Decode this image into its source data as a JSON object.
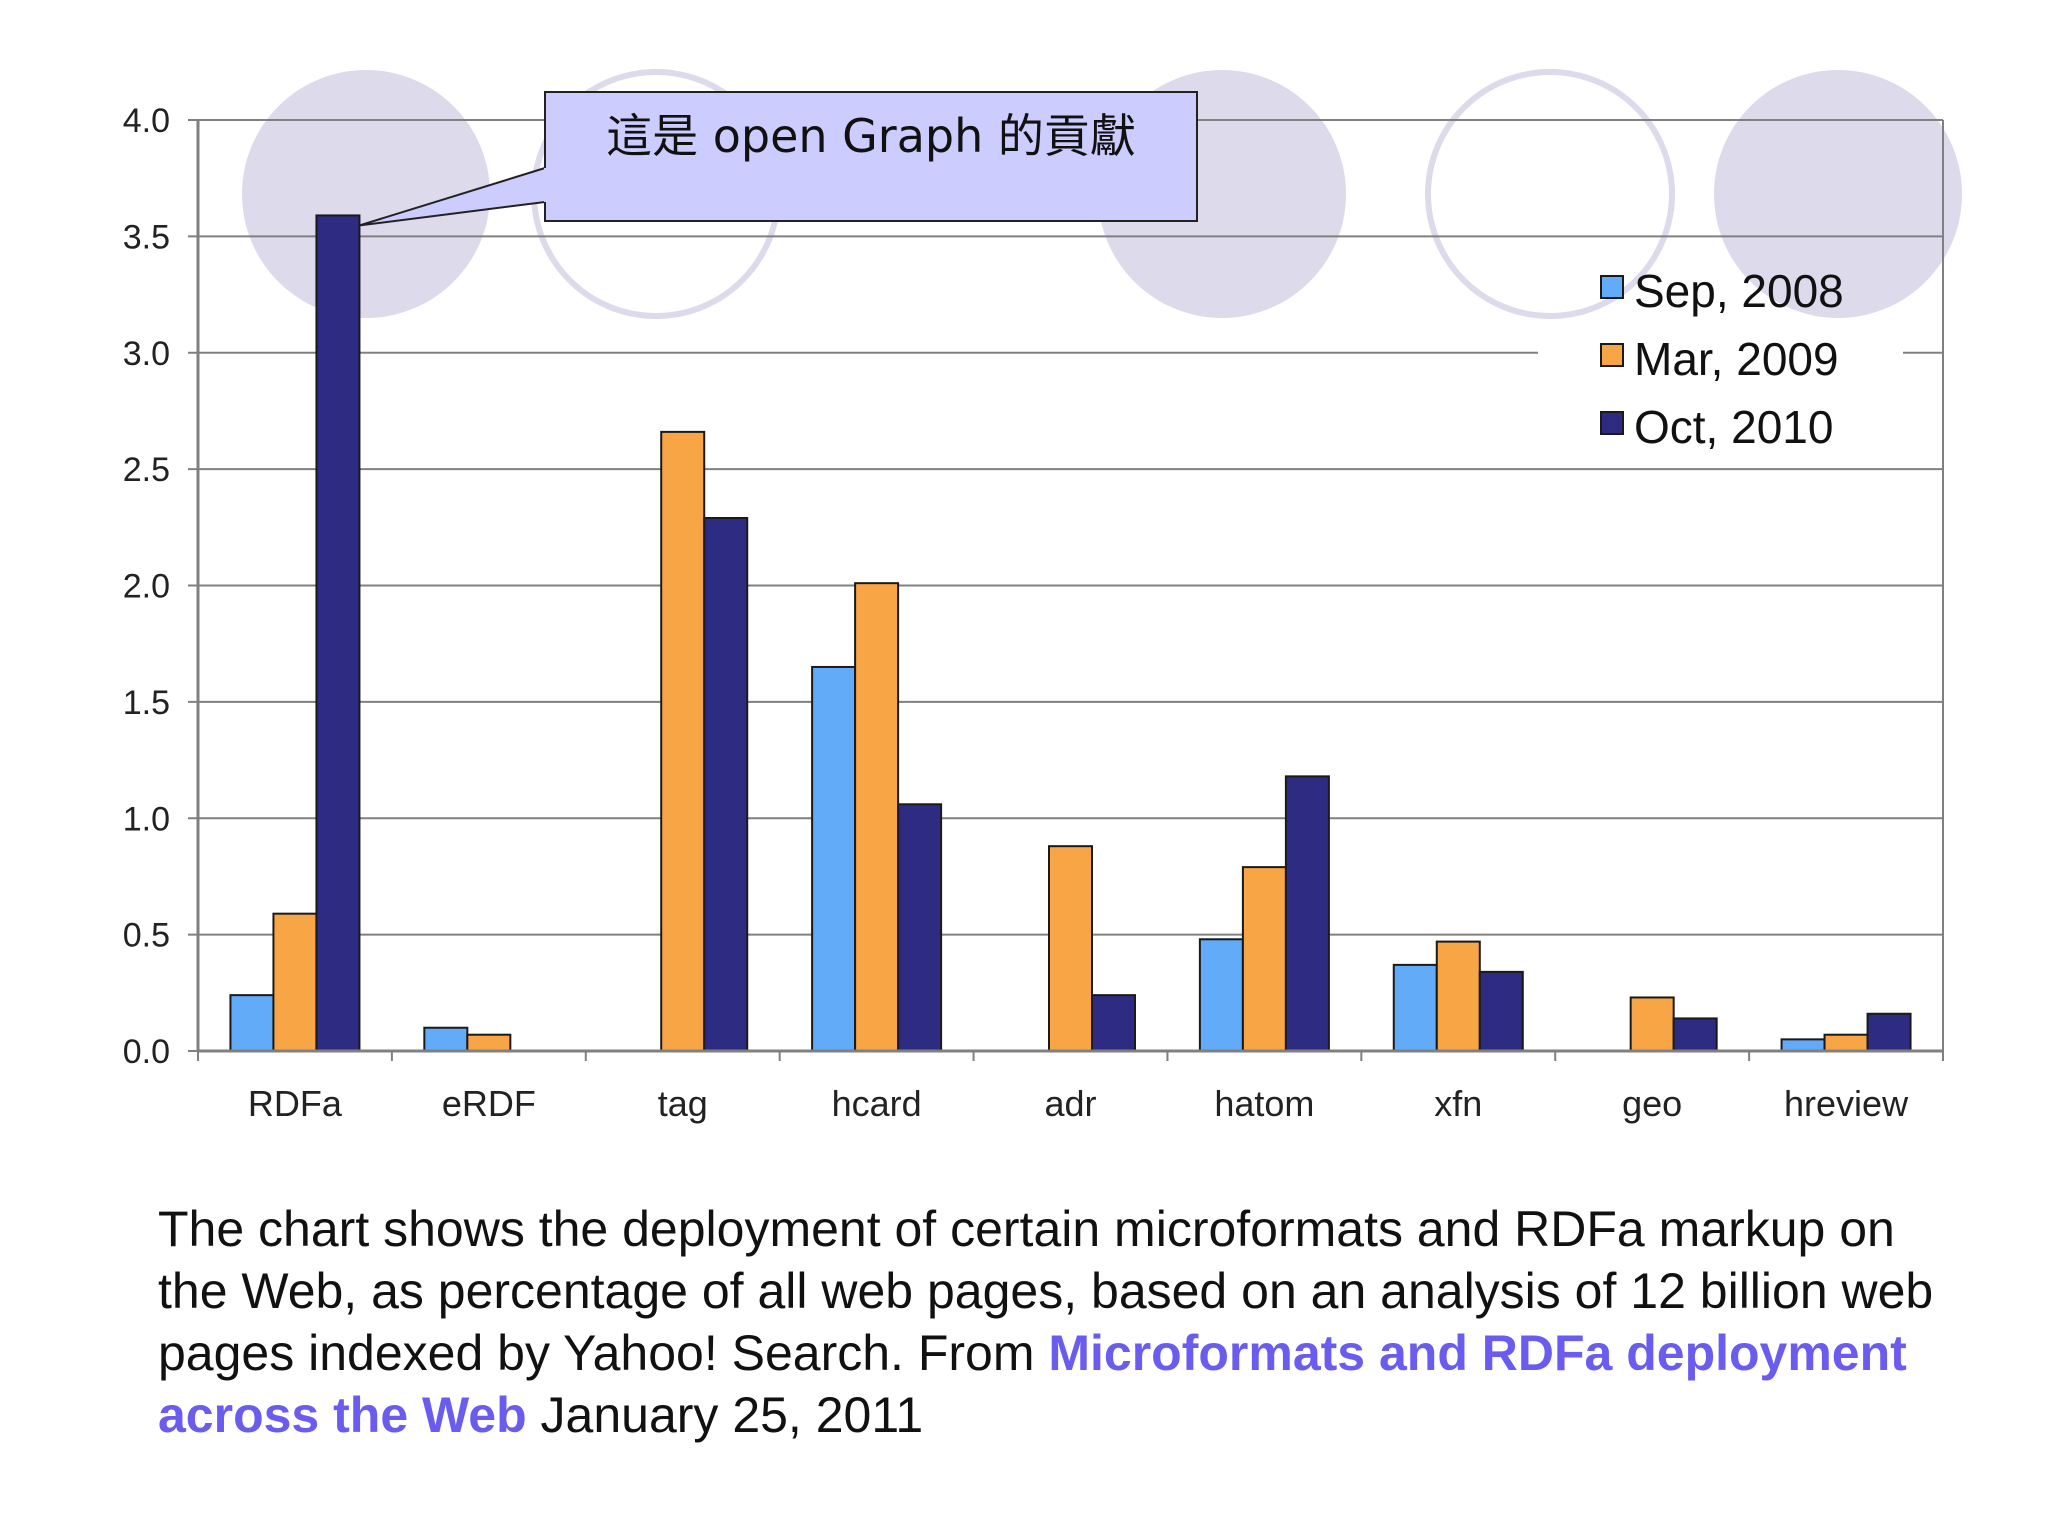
{
  "chart_data": {
    "type": "bar",
    "categories": [
      "RDFa",
      "eRDF",
      "tag",
      "hcard",
      "adr",
      "hatom",
      "xfn",
      "geo",
      "hreview"
    ],
    "series": [
      {
        "name": "Sep, 2008",
        "color": "#62abf8",
        "values": [
          0.24,
          0.1,
          0,
          1.65,
          0,
          0.48,
          0.37,
          0,
          0.05
        ]
      },
      {
        "name": "Mar, 2009",
        "color": "#f8a645",
        "values": [
          0.59,
          0.07,
          2.66,
          2.01,
          0.88,
          0.79,
          0.47,
          0.23,
          0.07
        ]
      },
      {
        "name": "Oct, 2010",
        "color": "#2e2b82",
        "values": [
          3.59,
          0,
          2.29,
          1.06,
          0.24,
          1.18,
          0.34,
          0.14,
          0.16
        ]
      }
    ],
    "y_ticks": [
      "0.0",
      "0.5",
      "1.0",
      "1.5",
      "2.0",
      "2.5",
      "3.0",
      "3.5",
      "4.0"
    ],
    "ylim": [
      0,
      4
    ],
    "title": "",
    "xlabel": "",
    "ylabel": "",
    "grid": true,
    "legend_position": "top-right",
    "annotation": {
      "text": "這是 open Graph  的貢獻",
      "target_category": "RDFa",
      "target_series": "Oct, 2010"
    }
  },
  "caption": {
    "text_before": "The chart shows the deployment of certain microformats and RDFa markup on the Web, as percentage of all web pages, based on an analysis of 12 billion web pages indexed by Yahoo! Search.   From ",
    "link_text": "Microformats and RDFa deployment across the Web",
    "text_after": "  January 25, 2011"
  },
  "colors": {
    "circle_fill": "#dcdaeb",
    "circle_stroke": "#dcdaeb",
    "callout_fill": "#ccccff",
    "link": "#6b5cf0"
  }
}
